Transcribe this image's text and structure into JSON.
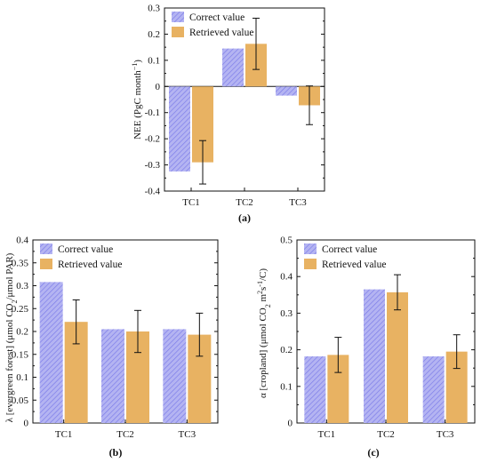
{
  "colors": {
    "correct": "#a4a4ef",
    "correct_stripe": "#6f6fe6",
    "retrieved": "#e8b262",
    "axis": "#111111"
  },
  "chart_data": [
    {
      "type": "bar",
      "panel_label": "(a)",
      "categories": [
        "TC1",
        "TC2",
        "TC3"
      ],
      "ylabel_parts": [
        "NEE (PgC month",
        "−1",
        ")"
      ],
      "ylim": [
        -0.4,
        0.3
      ],
      "yticks": [
        "-0.4",
        "-0.3",
        "-0.2",
        "-0.1",
        "0",
        "0.1",
        "0.2",
        "0.3"
      ],
      "legend": [
        "Correct value",
        "Retrieved value"
      ],
      "legend_position": "top-left",
      "series": [
        {
          "name": "Correct value",
          "values": [
            -0.325,
            0.145,
            -0.035
          ]
        },
        {
          "name": "Retrieved value",
          "values": [
            -0.29,
            0.163,
            -0.072
          ],
          "error": [
            0.083,
            0.098,
            0.074
          ]
        }
      ]
    },
    {
      "type": "bar",
      "panel_label": "(b)",
      "categories": [
        "TC1",
        "TC2",
        "TC3"
      ],
      "ylabel_parts": [
        "λ [evergreen forest] (μmol CO",
        "2",
        "/μmol PAR)"
      ],
      "ylim": [
        0,
        0.4
      ],
      "yticks": [
        "0",
        "0.05",
        "0.1",
        "0.15",
        "0.2",
        "0.25",
        "0.3",
        "0.35",
        "0.4"
      ],
      "legend": [
        "Correct value",
        "Retrieved value"
      ],
      "legend_position": "top-left",
      "series": [
        {
          "name": "Correct value",
          "values": [
            0.308,
            0.205,
            0.205
          ]
        },
        {
          "name": "Retrieved value",
          "values": [
            0.221,
            0.2,
            0.193
          ],
          "error": [
            0.048,
            0.046,
            0.047
          ]
        }
      ]
    },
    {
      "type": "bar",
      "panel_label": "(c)",
      "categories": [
        "TC1",
        "TC2",
        "TC3"
      ],
      "ylabel_parts": [
        "α [cropland] (μmol CO",
        "2",
        " m",
        "2",
        "s",
        "-1",
        "/C)"
      ],
      "ylim": [
        0,
        0.5
      ],
      "yticks": [
        "0",
        "0.1",
        "0.2",
        "0.3",
        "0.4",
        "0.5"
      ],
      "legend": [
        "Correct value",
        "Retrieved value"
      ],
      "legend_position": "top-left",
      "series": [
        {
          "name": "Correct value",
          "values": [
            0.182,
            0.365,
            0.182
          ]
        },
        {
          "name": "Retrieved value",
          "values": [
            0.186,
            0.357,
            0.195
          ],
          "error": [
            0.048,
            0.048,
            0.046
          ]
        }
      ]
    }
  ]
}
